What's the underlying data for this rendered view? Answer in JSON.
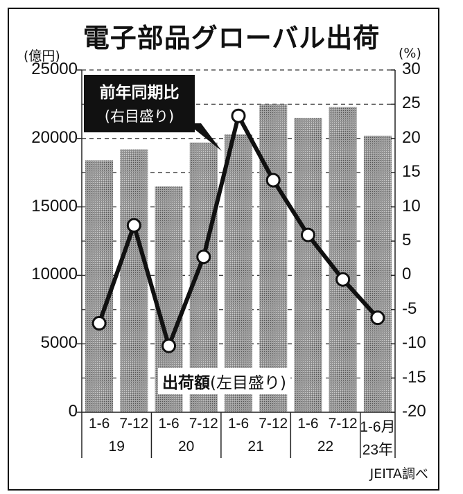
{
  "chart_data": {
    "type": "bar+line",
    "title": "電子部品グローバル出荷",
    "categories": [
      "19 1-6",
      "19 7-12",
      "20 1-6",
      "20 7-12",
      "21 1-6",
      "21 7-12",
      "22 1-6",
      "22 7-12",
      "23 1-6"
    ],
    "x_period_labels": [
      "1-6",
      "7-12",
      "1-6",
      "7-12",
      "1-6",
      "7-12",
      "1-6",
      "7-12",
      "1-6月"
    ],
    "x_year_labels": [
      "19",
      "20",
      "21",
      "22",
      "23年"
    ],
    "series": [
      {
        "name": "出荷額(左目盛り)",
        "type": "bar",
        "axis": "left",
        "values": [
          18400,
          19200,
          16500,
          19700,
          20300,
          22500,
          21500,
          22300,
          20200
        ]
      },
      {
        "name": "前年同期比(右目盛り)",
        "type": "line",
        "axis": "right",
        "values": [
          -7.0,
          7.3,
          -10.3,
          2.7,
          23.3,
          13.9,
          5.9,
          -0.6,
          -6.2
        ]
      }
    ],
    "left_axis": {
      "label": "(億円)",
      "ticks": [
        0,
        5000,
        10000,
        15000,
        20000,
        25000
      ],
      "ylim": [
        0,
        25000
      ]
    },
    "right_axis": {
      "label": "(%)",
      "ticks": [
        -20,
        -15,
        -10,
        -5,
        0,
        5,
        10,
        15,
        20,
        25,
        30
      ],
      "ylim": [
        -20,
        30
      ]
    },
    "grid": "dashed horizontal",
    "source": "JEITA調べ"
  },
  "labels": {
    "title": "電子部品グローバル出荷",
    "left_unit": "(億円)",
    "right_unit": "(%)",
    "callout_line1": "前年同期比",
    "callout_line2": "(右目盛り)",
    "bar_label_main": "出荷額",
    "bar_label_sub": "(左目盛り)",
    "source": "JEITA調べ"
  }
}
